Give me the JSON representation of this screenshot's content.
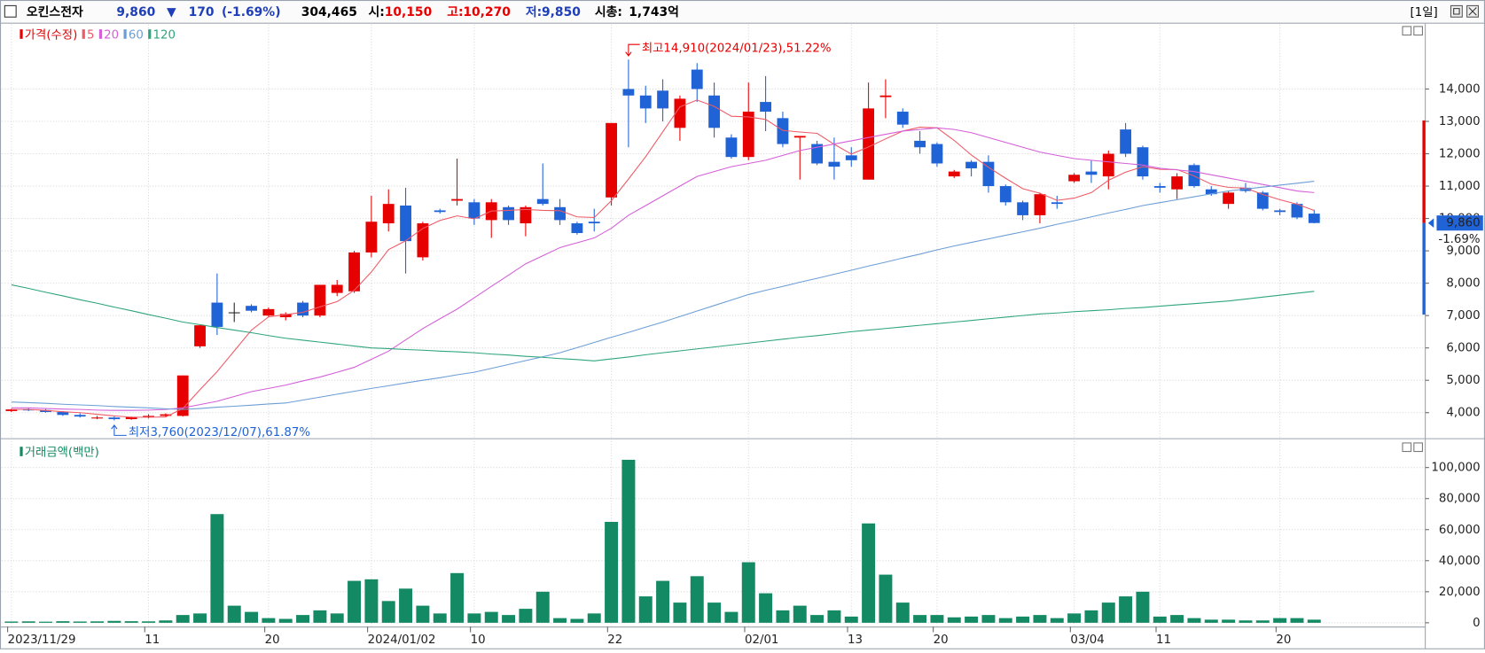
{
  "header": {
    "name": "오킨스전자",
    "price": "9,860",
    "arrow": "▼",
    "change": "170",
    "change_pct": "(-1.69%)",
    "volume": "304,465",
    "open_label": "시:",
    "open": "10,150",
    "high_label": "고:",
    "high": "10,270",
    "low_label": "저:",
    "low": "9,850",
    "cap_label": "시총:",
    "cap": "1,743억",
    "period": "[1일]"
  },
  "chart_data": [
    {
      "type": "candlestick",
      "name": "가격(수정)",
      "up_color": "#e60000",
      "down_color": "#1f63d6",
      "flat_color": "#222222",
      "open": [
        4050,
        4100,
        4080,
        4020,
        3930,
        3820,
        3850,
        3800,
        3860,
        3900,
        3900,
        6050,
        7400,
        7100,
        7300,
        7000,
        6950,
        7400,
        7000,
        7700,
        7750,
        8950,
        9850,
        10400,
        8800,
        10250,
        10550,
        10500,
        9950,
        10350,
        9850,
        10600,
        10350,
        9850,
        9900,
        10650,
        14000,
        13800,
        13950,
        12800,
        14600,
        13800,
        12500,
        11900,
        13600,
        13100,
        12500,
        12300,
        11750,
        11950,
        11200,
        13750,
        13300,
        12400,
        12300,
        11300,
        11750,
        11750,
        11000,
        10500,
        10100,
        10500,
        11150,
        11450,
        11300,
        12750,
        12200,
        11000,
        10900,
        11650,
        10900,
        10450,
        10950,
        10800,
        10250,
        10450,
        10150
      ],
      "high": [
        4120,
        4150,
        4110,
        4050,
        3980,
        3900,
        3880,
        3880,
        3950,
        3980,
        5150,
        6700,
        8300,
        7400,
        7350,
        7250,
        7100,
        7450,
        7950,
        8100,
        9000,
        10700,
        10900,
        10950,
        9900,
        10300,
        11850,
        10600,
        10600,
        10400,
        10400,
        11700,
        10600,
        9900,
        10300,
        12950,
        14910,
        14100,
        14300,
        13800,
        14800,
        14200,
        12600,
        14200,
        14400,
        13300,
        12550,
        12400,
        12500,
        12200,
        14200,
        14300,
        13400,
        12700,
        12350,
        11500,
        11800,
        11950,
        11050,
        10550,
        10800,
        10700,
        11400,
        11800,
        12100,
        12950,
        12250,
        11100,
        11400,
        11700,
        11000,
        10850,
        11100,
        10850,
        10300,
        10500,
        10270
      ],
      "low": [
        4020,
        4050,
        4000,
        3900,
        3850,
        3800,
        3760,
        3780,
        3820,
        3870,
        3880,
        6000,
        6400,
        6800,
        7100,
        6950,
        6850,
        6950,
        6950,
        7600,
        7700,
        8800,
        9600,
        8300,
        8700,
        10150,
        10400,
        9800,
        9400,
        9800,
        9450,
        10400,
        9800,
        9500,
        9600,
        10400,
        12200,
        12950,
        13000,
        12400,
        13600,
        12500,
        11850,
        11800,
        12700,
        12200,
        11200,
        11650,
        11200,
        11600,
        11200,
        13100,
        12800,
        12000,
        11600,
        11250,
        11300,
        10800,
        10400,
        9950,
        9850,
        10300,
        11100,
        11100,
        10900,
        11900,
        11200,
        10800,
        10600,
        10950,
        10700,
        10300,
        10800,
        10250,
        10100,
        9980,
        9850
      ],
      "close": [
        4100,
        4080,
        4020,
        3930,
        3880,
        3850,
        3800,
        3860,
        3900,
        3950,
        5150,
        6700,
        6650,
        7100,
        7150,
        7200,
        7050,
        7000,
        7950,
        7950,
        8950,
        9900,
        10450,
        9300,
        9850,
        10200,
        10600,
        10000,
        10500,
        9950,
        10350,
        10450,
        9950,
        9550,
        9850,
        12950,
        13800,
        13400,
        13400,
        13700,
        14000,
        12800,
        11900,
        13300,
        13300,
        12300,
        12550,
        11700,
        11600,
        11800,
        13400,
        13800,
        12900,
        12200,
        11700,
        11450,
        11550,
        11000,
        10500,
        10100,
        10750,
        10450,
        11350,
        11350,
        12000,
        12000,
        11300,
        10950,
        11300,
        11000,
        10750,
        10800,
        10850,
        10300,
        10200,
        10030,
        9860
      ],
      "series": [
        {
          "name": "5",
          "color": "#ee5a66",
          "values": [
            4100,
            4100,
            4070,
            4030,
            4000,
            3950,
            3900,
            3860,
            3860,
            3870,
            4130,
            4710,
            5270,
            5910,
            6550,
            6960,
            7030,
            7100,
            7270,
            7430,
            7780,
            8350,
            9040,
            9310,
            9690,
            9940,
            10080,
            9990,
            10230,
            10250,
            10280,
            10250,
            10240,
            10050,
            10030,
            10550,
            11220,
            11910,
            12680,
            13450,
            13660,
            13460,
            13160,
            13140,
            13060,
            12720,
            12670,
            12630,
            12290,
            11990,
            12210,
            12460,
            12700,
            12820,
            12800,
            12410,
            11960,
            11580,
            11240,
            10920,
            10780,
            10560,
            10630,
            10800,
            11180,
            11430,
            11600,
            11520,
            11510,
            11310,
            11060,
            10960,
            10940,
            10740,
            10580,
            10440,
            10250
          ]
        },
        {
          "name": "20",
          "color": "#d45fd8",
          "values": [
            4150,
            4150,
            4130,
            4110,
            4100,
            4080,
            4070,
            4070,
            4080,
            4100,
            4150,
            4250,
            4350,
            4500,
            4650,
            4750,
            4850,
            4980,
            5100,
            5250,
            5400,
            5650,
            5900,
            6250,
            6600,
            6900,
            7200,
            7550,
            7900,
            8250,
            8600,
            8850,
            9100,
            9250,
            9400,
            9700,
            10100,
            10400,
            10700,
            11000,
            11300,
            11450,
            11600,
            11700,
            11800,
            11950,
            12100,
            12200,
            12300,
            12400,
            12500,
            12600,
            12700,
            12750,
            12800,
            12750,
            12650,
            12500,
            12350,
            12200,
            12050,
            11950,
            11850,
            11800,
            11750,
            11700,
            11650,
            11550,
            11500,
            11450,
            11350,
            11250,
            11150,
            11050,
            10950,
            10850,
            10800
          ]
        },
        {
          "name": "60",
          "color": "#6d9ed6",
          "values": [
            4330,
            4310,
            4290,
            4260,
            4240,
            4220,
            4190,
            4170,
            4150,
            4120,
            4100,
            4130,
            4170,
            4200,
            4230,
            4270,
            4300,
            4390,
            4480,
            4570,
            4660,
            4750,
            4830,
            4920,
            5000,
            5080,
            5170,
            5250,
            5370,
            5490,
            5610,
            5730,
            5850,
            6010,
            6170,
            6330,
            6480,
            6640,
            6800,
            6970,
            7140,
            7310,
            7480,
            7650,
            7780,
            7900,
            8030,
            8150,
            8280,
            8400,
            8530,
            8650,
            8780,
            8900,
            9030,
            9150,
            9260,
            9370,
            9480,
            9590,
            9700,
            9820,
            9930,
            10050,
            10170,
            10280,
            10400,
            10490,
            10580,
            10670,
            10760,
            10850,
            10910,
            10970,
            11030,
            11090,
            11150
          ]
        },
        {
          "name": "120",
          "color": "#2ea57c",
          "values": [
            7950,
            7840,
            7720,
            7610,
            7490,
            7380,
            7260,
            7150,
            7030,
            6920,
            6800,
            6720,
            6630,
            6550,
            6470,
            6380,
            6300,
            6240,
            6180,
            6120,
            6060,
            6000,
            5980,
            5950,
            5930,
            5900,
            5880,
            5850,
            5810,
            5780,
            5740,
            5710,
            5670,
            5640,
            5600,
            5660,
            5720,
            5790,
            5850,
            5910,
            5970,
            6030,
            6090,
            6150,
            6210,
            6270,
            6330,
            6380,
            6440,
            6500,
            6550,
            6600,
            6650,
            6700,
            6750,
            6800,
            6850,
            6900,
            6950,
            7000,
            7050,
            7080,
            7120,
            7150,
            7180,
            7220,
            7250,
            7290,
            7330,
            7370,
            7410,
            7450,
            7510,
            7570,
            7630,
            7690,
            7750
          ]
        }
      ],
      "ylim": [
        3240,
        15990
      ],
      "yticks": [
        {
          "value": 4000,
          "label": "4,000"
        },
        {
          "value": 5000,
          "label": "5,000"
        },
        {
          "value": 6000,
          "label": "6,000"
        },
        {
          "value": 7000,
          "label": "7,000"
        },
        {
          "value": 8000,
          "label": "8,000"
        },
        {
          "value": 9000,
          "label": "9,000"
        },
        {
          "value": 10000,
          "label": "10,000"
        },
        {
          "value": 11000,
          "label": "11,000"
        },
        {
          "value": 12000,
          "label": "12,000"
        },
        {
          "value": 13000,
          "label": "13,000"
        },
        {
          "value": 14000,
          "label": "14,000"
        }
      ],
      "current": {
        "value": 9860,
        "label": "9,860"
      },
      "current_change": "-1.69%",
      "limit_up": 13030,
      "limit_down": 7030,
      "annotations": {
        "high": "최고14,910(2024/01/23),51.22%",
        "low": "최저3,760(2023/12/07),61.87%"
      },
      "grid": true
    },
    {
      "type": "bar",
      "name": "거래금액(백만)",
      "color": "#138a63",
      "categories": [
        "2023/11/29",
        null,
        null,
        null,
        null,
        null,
        null,
        null,
        "11",
        null,
        null,
        null,
        null,
        null,
        null,
        "20",
        null,
        null,
        null,
        null,
        null,
        "2024/01/02",
        null,
        null,
        null,
        null,
        null,
        "10",
        null,
        null,
        null,
        null,
        null,
        null,
        null,
        "22",
        null,
        null,
        null,
        null,
        null,
        null,
        null,
        "02/01",
        null,
        null,
        null,
        null,
        null,
        "13",
        null,
        null,
        null,
        null,
        "20",
        null,
        null,
        null,
        null,
        null,
        null,
        null,
        "03/04",
        null,
        null,
        null,
        null,
        "11",
        null,
        null,
        null,
        null,
        null,
        null,
        "20",
        null,
        null
      ],
      "values": [
        800,
        900,
        700,
        1000,
        800,
        900,
        1200,
        1000,
        900,
        1500,
        5000,
        6000,
        70000,
        11000,
        7000,
        3000,
        2500,
        5000,
        8000,
        6000,
        27000,
        28000,
        14000,
        22000,
        11000,
        6000,
        32000,
        6000,
        7000,
        5000,
        9000,
        20000,
        3000,
        2500,
        6000,
        65000,
        105000,
        17000,
        27000,
        13000,
        30000,
        13000,
        7000,
        39000,
        19000,
        8000,
        11000,
        5000,
        8000,
        4000,
        64000,
        31000,
        13000,
        5000,
        5000,
        3500,
        4000,
        5000,
        3000,
        4000,
        5000,
        3000,
        6000,
        8000,
        13000,
        17000,
        20000,
        4000,
        5000,
        3000,
        2000,
        2000,
        1500,
        1500,
        3000,
        3000,
        2000
      ],
      "ylim": [
        -2440,
        117070
      ],
      "yticks": [
        0,
        {
          "value": 20000,
          "label": "20,000"
        },
        {
          "value": 40000,
          "label": "40,000"
        },
        {
          "value": 60000,
          "label": "60,000"
        },
        {
          "value": 80000,
          "label": "80,000"
        },
        {
          "value": 100000,
          "label": "100,000"
        }
      ],
      "grid": true
    }
  ]
}
